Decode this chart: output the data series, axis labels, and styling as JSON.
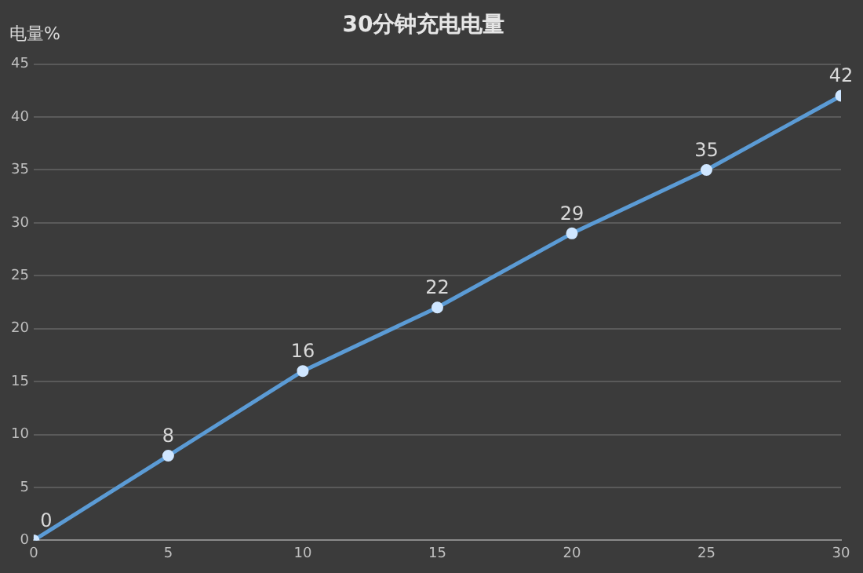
{
  "chart_data": {
    "type": "line",
    "title": "30分钟充电电量",
    "ylabel": "电量%",
    "x": [
      0,
      5,
      10,
      15,
      20,
      25,
      30
    ],
    "series": [
      {
        "color": "#5b9bd5",
        "values": [
          0,
          8,
          16,
          22,
          29,
          35,
          42
        ]
      }
    ],
    "xlim": [
      0,
      30
    ],
    "xticks": [
      0,
      5,
      10,
      15,
      20,
      25,
      30
    ],
    "ylim": [
      0,
      45
    ],
    "yticks": [
      0,
      5,
      10,
      15,
      20,
      25,
      30,
      35,
      40,
      45
    ],
    "grid": "y",
    "legend": false,
    "marker": "circle",
    "line_style": "solid",
    "data_labels": true
  }
}
